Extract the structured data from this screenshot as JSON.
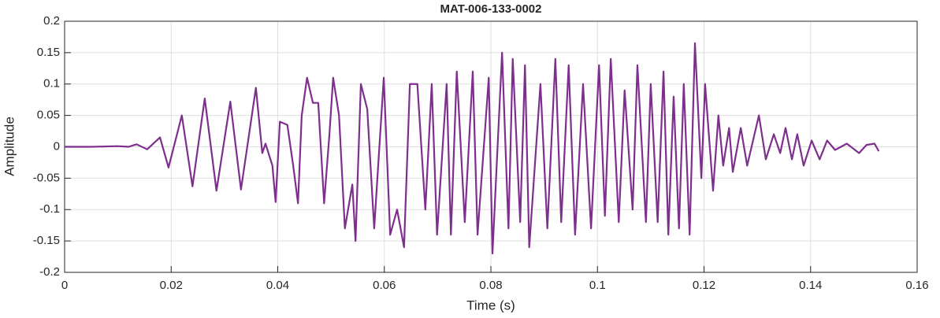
{
  "chart_data": {
    "type": "line",
    "title": "MAT-006-133-0002",
    "x_label": "Time (s)",
    "y_label": "Amplitude",
    "xlim": [
      0,
      0.16
    ],
    "ylim": [
      -0.2,
      0.2
    ],
    "xticks": [
      0,
      0.02,
      0.04,
      0.06,
      0.08,
      0.1,
      0.12,
      0.14,
      0.16
    ],
    "yticks": [
      -0.2,
      -0.15,
      -0.1,
      -0.05,
      0,
      0.05,
      0.1,
      0.15,
      0.2
    ],
    "grid": true,
    "series": [
      {
        "color": "#7e2f8e",
        "x": [
          0,
          0.005,
          0.01,
          0.012,
          0.0135,
          0.0155,
          0.0179,
          0.0195,
          0.022,
          0.024,
          0.0263,
          0.0285,
          0.0311,
          0.0331,
          0.0359,
          0.0371,
          0.0377,
          0.039,
          0.0396,
          0.0404,
          0.0418,
          0.0429,
          0.0438,
          0.0445,
          0.0455,
          0.0466,
          0.0476,
          0.0487,
          0.0497,
          0.0504,
          0.0515,
          0.0526,
          0.054,
          0.0546,
          0.0556,
          0.0568,
          0.0581,
          0.0599,
          0.0611,
          0.0624,
          0.0637,
          0.0648,
          0.0662,
          0.0677,
          0.0689,
          0.0699,
          0.0717,
          0.0725,
          0.0736,
          0.0751,
          0.0766,
          0.0775,
          0.0796,
          0.0803,
          0.0821,
          0.0833,
          0.0841,
          0.0855,
          0.0864,
          0.0872,
          0.0893,
          0.0906,
          0.0921,
          0.0932,
          0.0946,
          0.0958,
          0.0973,
          0.0988,
          0.1003,
          0.1014,
          0.1025,
          0.104,
          0.1051,
          0.1066,
          0.1075,
          0.1091,
          0.11,
          0.1113,
          0.1124,
          0.1133,
          0.1143,
          0.1153,
          0.1162,
          0.1173,
          0.1183,
          0.1195,
          0.1202,
          0.1217,
          0.1227,
          0.1236,
          0.1247,
          0.1254,
          0.1269,
          0.1281,
          0.1303,
          0.1316,
          0.1331,
          0.1343,
          0.1353,
          0.1365,
          0.1375,
          0.1387,
          0.1402,
          0.1417,
          0.1431,
          0.1446,
          0.1468,
          0.1491,
          0.1505,
          0.152,
          0.1528
        ],
        "values": [
          0,
          0,
          0.001,
          0,
          0.004,
          -0.004,
          0.015,
          -0.033,
          0.05,
          -0.063,
          0.077,
          -0.07,
          0.072,
          -0.068,
          0.094,
          -0.01,
          0.005,
          -0.03,
          -0.088,
          0.04,
          0.035,
          -0.03,
          -0.09,
          0.05,
          0.11,
          0.07,
          0.07,
          -0.09,
          0.02,
          0.11,
          0.05,
          -0.13,
          -0.06,
          -0.15,
          0.1,
          0.06,
          -0.13,
          0.11,
          -0.14,
          -0.1,
          -0.16,
          0.1,
          0.1,
          -0.1,
          0.1,
          -0.14,
          0.1,
          -0.14,
          0.12,
          -0.12,
          0.12,
          -0.14,
          0.11,
          -0.17,
          0.15,
          -0.13,
          0.14,
          -0.12,
          0.13,
          -0.16,
          0.1,
          -0.13,
          0.14,
          -0.12,
          0.13,
          -0.14,
          0.1,
          -0.13,
          0.13,
          -0.11,
          0.14,
          -0.12,
          0.09,
          -0.1,
          0.13,
          -0.12,
          0.1,
          -0.12,
          0.12,
          -0.14,
          0.08,
          -0.13,
          0.1,
          -0.14,
          0.165,
          -0.05,
          0.1,
          -0.07,
          0.05,
          -0.03,
          0.03,
          -0.04,
          0.03,
          -0.03,
          0.05,
          -0.02,
          0.02,
          -0.01,
          0.03,
          -0.02,
          0.02,
          -0.03,
          0.01,
          -0.02,
          0.01,
          -0.005,
          0.005,
          -0.01,
          0.003,
          0.005,
          -0.007
        ]
      }
    ]
  }
}
